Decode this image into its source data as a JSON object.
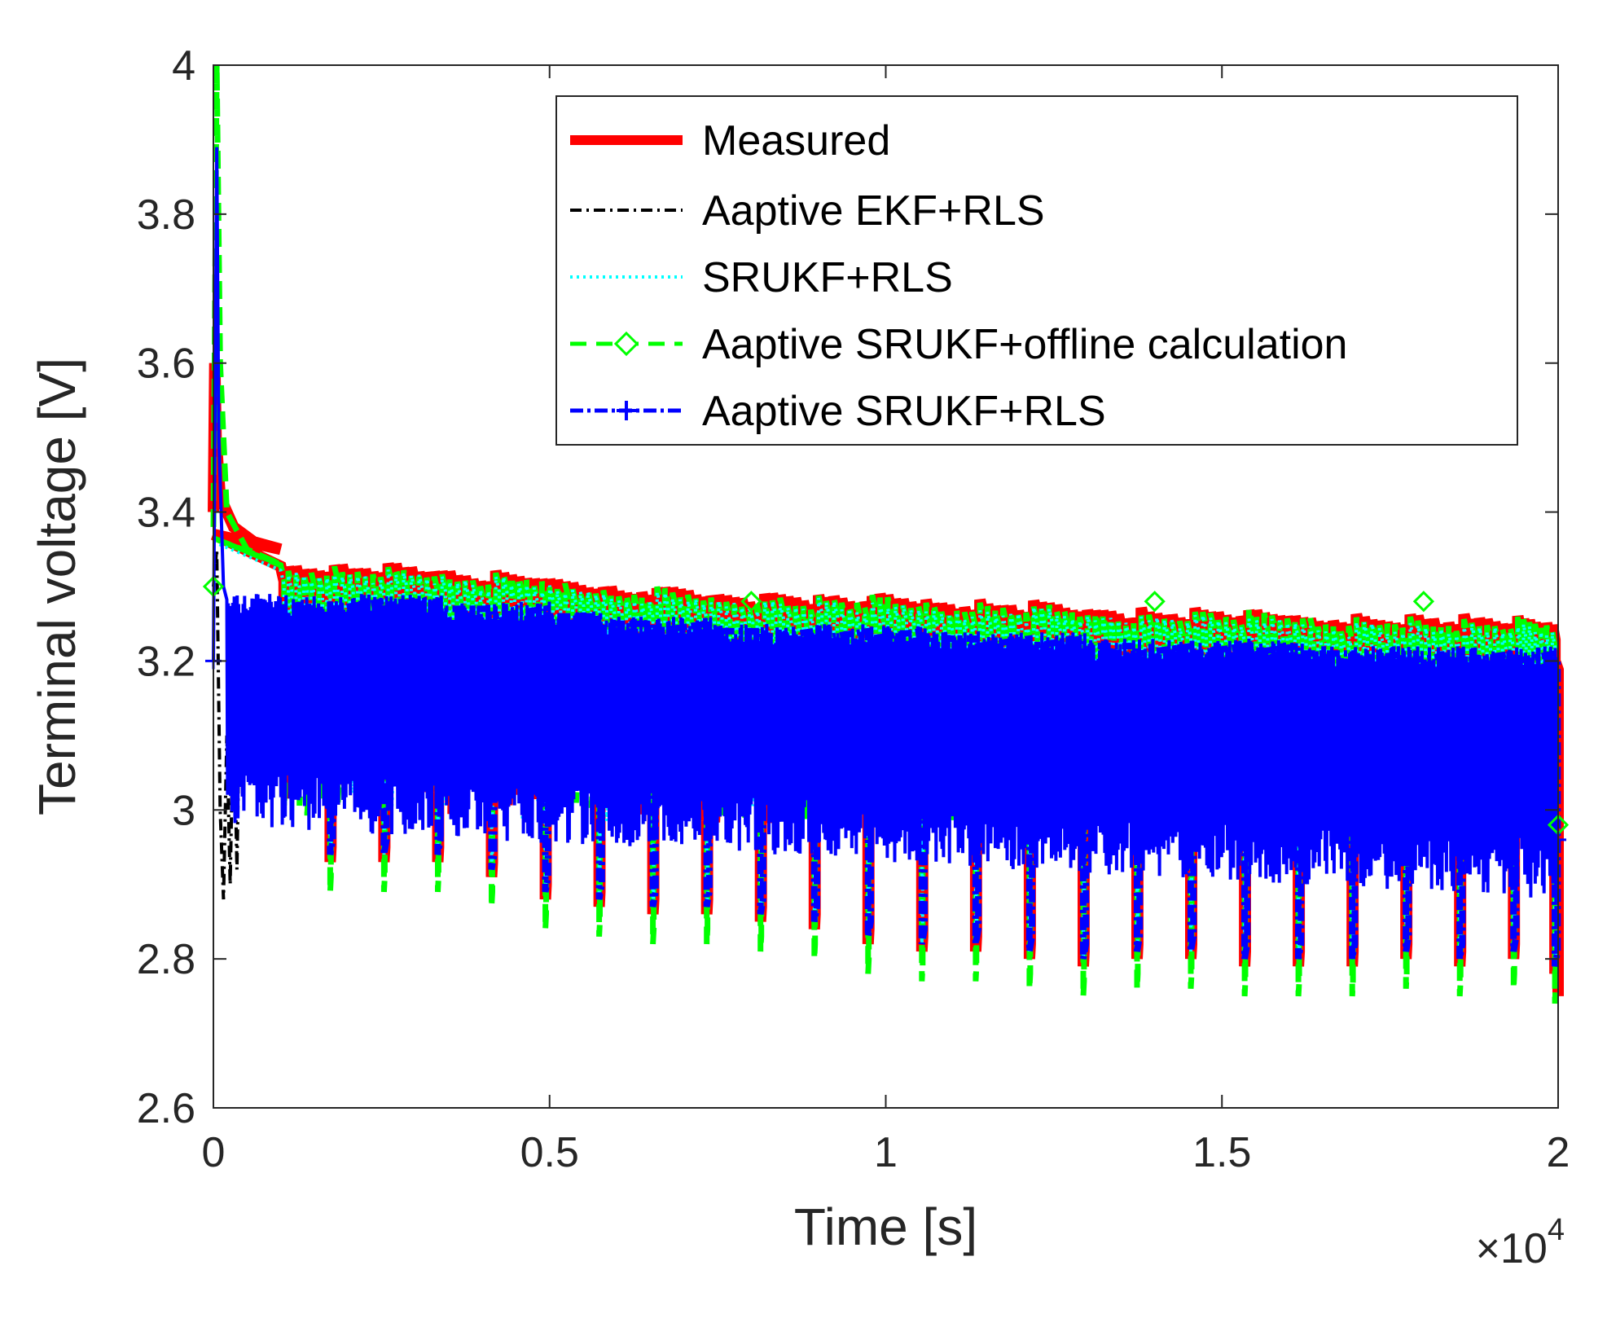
{
  "chart_data": {
    "type": "line",
    "title": "",
    "xlabel": "Time [s]",
    "ylabel": "Terminal voltage [V]",
    "x_multiplier": "×10",
    "x_multiplier_exponent": "4",
    "xlim": [
      0,
      2
    ],
    "ylim": [
      2.6,
      4
    ],
    "xticks": [
      {
        "value": 0,
        "label": "0"
      },
      {
        "value": 0.5,
        "label": "0.5"
      },
      {
        "value": 1,
        "label": "1"
      },
      {
        "value": 1.5,
        "label": "1.5"
      },
      {
        "value": 2,
        "label": "2"
      }
    ],
    "yticks": [
      {
        "value": 2.6,
        "label": "2.6"
      },
      {
        "value": 2.8,
        "label": "2.8"
      },
      {
        "value": 3.0,
        "label": "3"
      },
      {
        "value": 3.2,
        "label": "3.2"
      },
      {
        "value": 3.4,
        "label": "3.4"
      },
      {
        "value": 3.6,
        "label": "3.6"
      },
      {
        "value": 3.8,
        "label": "3.8"
      },
      {
        "value": 4.0,
        "label": "4"
      }
    ],
    "grid": false,
    "legend_position": "top-right",
    "series": [
      {
        "name": "Measured",
        "color": "#ff0000",
        "line_style": "solid",
        "marker": "none"
      },
      {
        "name": "Aaptive EKF+RLS",
        "color": "#000000",
        "line_style": "dash-dot",
        "marker": "none"
      },
      {
        "name": "SRUKF+RLS",
        "color": "#00ffff",
        "line_style": "dotted",
        "marker": "none"
      },
      {
        "name": "Aaptive SRUKF+offline calculation",
        "color": "#00ff00",
        "line_style": "dashed",
        "marker": "diamond"
      },
      {
        "name": "Aaptive SRUKF+RLS",
        "color": "#0000ff",
        "line_style": "dash-dot",
        "marker": "plus"
      }
    ],
    "initial_transient": {
      "x": [
        0,
        0.005,
        0.01,
        0.02,
        0.04,
        0.07,
        0.1
      ],
      "measured_peak": 3.6,
      "estimate_peak": 4.0,
      "settle": 3.37
    },
    "cycle_starts": [
      0.1,
      0.18,
      0.26,
      0.34,
      0.42,
      0.5,
      0.58,
      0.66,
      0.74,
      0.82,
      0.9,
      0.98,
      1.06,
      1.14,
      1.22,
      1.3,
      1.38,
      1.46,
      1.54,
      1.62,
      1.7,
      1.78,
      1.86,
      1.94
    ],
    "cycle_upper_envelope": [
      3.33,
      3.33,
      3.33,
      3.32,
      3.32,
      3.31,
      3.3,
      3.3,
      3.29,
      3.29,
      3.29,
      3.29,
      3.28,
      3.28,
      3.28,
      3.27,
      3.27,
      3.27,
      3.27,
      3.26,
      3.26,
      3.26,
      3.26,
      3.26
    ],
    "cycle_lower_envelope": [
      2.93,
      2.93,
      2.93,
      2.91,
      2.88,
      2.87,
      2.86,
      2.86,
      2.85,
      2.84,
      2.82,
      2.81,
      2.81,
      2.8,
      2.79,
      2.8,
      2.8,
      2.79,
      2.79,
      2.79,
      2.8,
      2.79,
      2.8,
      2.78
    ],
    "final_value": 2.75
  },
  "legend_entries": [
    "Measured",
    "Aaptive EKF+RLS",
    "SRUKF+RLS",
    "Aaptive SRUKF+offline calculation",
    "Aaptive SRUKF+RLS"
  ]
}
